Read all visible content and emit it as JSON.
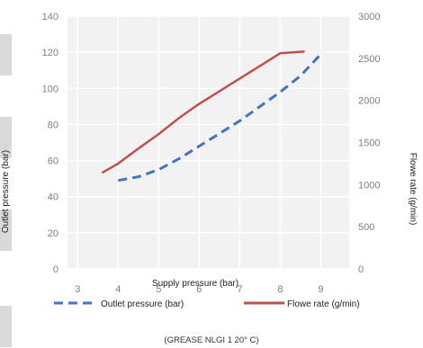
{
  "chart_data": {
    "type": "line",
    "xlabel": "Supply pressure (bar)",
    "ylabel": "Outlet pressure (bar)",
    "y2label": "Flowe rate (g/min)",
    "caption": "(GREASE NLGI 1 20° C)",
    "xlim": [
      2.75,
      9.7
    ],
    "ylim": [
      0,
      140
    ],
    "y2lim": [
      0,
      3000
    ],
    "xticks": [
      "3",
      "4",
      "5",
      "6",
      "7",
      "8",
      "9"
    ],
    "yticks": [
      "0",
      "20",
      "40",
      "60",
      "80",
      "100",
      "120",
      "140"
    ],
    "y2ticks": [
      "0",
      "500",
      "1000",
      "1500",
      "2000",
      "2500",
      "3000"
    ],
    "grid": true,
    "legend_position": "bottom",
    "series": [
      {
        "name": "Outlet pressure (bar)",
        "axis": "left",
        "style": "dashed",
        "color": "#4472c4",
        "x": [
          4.0,
          4.5,
          5.0,
          5.5,
          6.0,
          6.5,
          7.0,
          7.5,
          8.0,
          8.5,
          9.0
        ],
        "y": [
          49,
          51,
          55,
          61,
          68,
          75,
          82,
          90,
          98,
          107,
          119
        ]
      },
      {
        "name": "Flowe rate (g/min)",
        "axis": "right",
        "style": "solid",
        "color": "#c0504d",
        "x": [
          3.6,
          4.0,
          4.5,
          5.0,
          5.5,
          6.0,
          6.5,
          7.0,
          7.5,
          8.0,
          8.6
        ],
        "y": [
          1140,
          1250,
          1430,
          1600,
          1790,
          1960,
          2110,
          2260,
          2410,
          2560,
          2580
        ]
      }
    ]
  }
}
